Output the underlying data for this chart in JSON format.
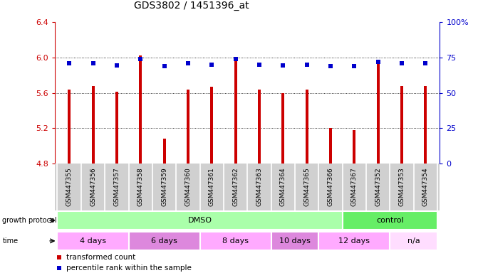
{
  "title": "GDS3802 / 1451396_at",
  "samples": [
    "GSM447355",
    "GSM447356",
    "GSM447357",
    "GSM447358",
    "GSM447359",
    "GSM447360",
    "GSM447361",
    "GSM447362",
    "GSM447363",
    "GSM447364",
    "GSM447365",
    "GSM447366",
    "GSM447367",
    "GSM447352",
    "GSM447353",
    "GSM447354"
  ],
  "bar_values": [
    5.64,
    5.68,
    5.61,
    6.02,
    5.08,
    5.64,
    5.67,
    6.0,
    5.64,
    5.6,
    5.64,
    5.2,
    5.18,
    5.97,
    5.68,
    5.68
  ],
  "dot_values_left": [
    5.93,
    5.93,
    5.91,
    5.98,
    5.9,
    5.93,
    5.92,
    5.98,
    5.92,
    5.91,
    5.92,
    5.9,
    5.9,
    5.95,
    5.93,
    5.93
  ],
  "ymin": 4.8,
  "ymax": 6.4,
  "y_ticks": [
    4.8,
    5.2,
    5.6,
    6.0,
    6.4
  ],
  "y2_ticks": [
    0,
    25,
    50,
    75,
    100
  ],
  "y2_ticklabels": [
    "0",
    "25",
    "50",
    "75",
    "100%"
  ],
  "bar_color": "#cc0000",
  "dot_color": "#0000cc",
  "protocol_groups": [
    {
      "label": "DMSO",
      "start": 0,
      "end": 12,
      "color": "#aaffaa"
    },
    {
      "label": "control",
      "start": 12,
      "end": 16,
      "color": "#66ee66"
    }
  ],
  "time_groups": [
    {
      "label": "4 days",
      "start": 0,
      "end": 3,
      "color": "#ffaaff"
    },
    {
      "label": "6 days",
      "start": 3,
      "end": 6,
      "color": "#dd88dd"
    },
    {
      "label": "8 days",
      "start": 6,
      "end": 9,
      "color": "#ffaaff"
    },
    {
      "label": "10 days",
      "start": 9,
      "end": 11,
      "color": "#dd88dd"
    },
    {
      "label": "12 days",
      "start": 11,
      "end": 14,
      "color": "#ffaaff"
    },
    {
      "label": "n/a",
      "start": 14,
      "end": 16,
      "color": "#ffddff"
    }
  ],
  "xlabel_color": "#cc0000",
  "y2label_color": "#0000cc",
  "label_bg_color": "#d0d0d0",
  "bar_width": 0.12
}
